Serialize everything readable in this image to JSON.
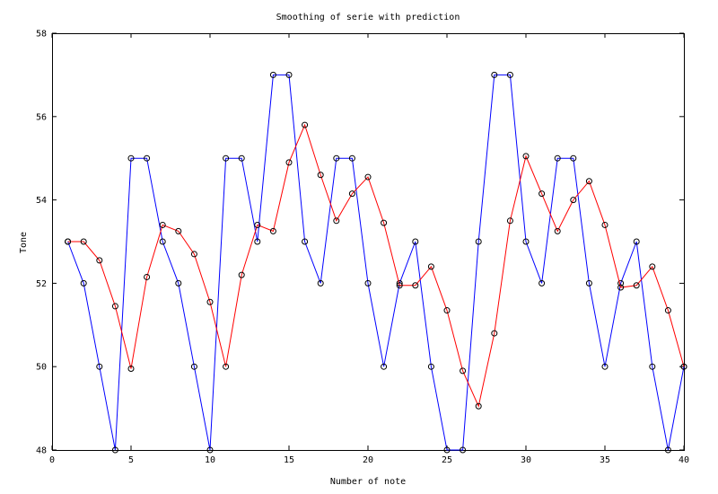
{
  "chart_data": {
    "type": "line",
    "title": "Smoothing of serie with prediction",
    "xlabel": "Number of note",
    "ylabel": "Tone",
    "xlim": [
      0,
      40
    ],
    "ylim": [
      48,
      58
    ],
    "xticks": [
      0,
      5,
      10,
      15,
      20,
      25,
      30,
      35,
      40
    ],
    "yticks": [
      48,
      50,
      52,
      54,
      56,
      58
    ],
    "grid": false,
    "legend": "none",
    "x": [
      1,
      2,
      3,
      4,
      5,
      6,
      7,
      8,
      9,
      10,
      11,
      12,
      13,
      14,
      15,
      16,
      17,
      18,
      19,
      20,
      21,
      22,
      23,
      24,
      25,
      26,
      27,
      28,
      29,
      30,
      31,
      32,
      33,
      34,
      35,
      36,
      37,
      38,
      39,
      40
    ],
    "series": [
      {
        "color": "#0000ff",
        "values": [
          53,
          52,
          50,
          48,
          55,
          55,
          53,
          52,
          50,
          48,
          55,
          55,
          53,
          57,
          57,
          53,
          52,
          55,
          55,
          52,
          50,
          52,
          53,
          50,
          48,
          48,
          53,
          57,
          57,
          53,
          52,
          55,
          55,
          52,
          50,
          52,
          53,
          50,
          48,
          50
        ]
      },
      {
        "color": "#ff0000",
        "values": [
          53,
          53,
          52.55,
          51.45,
          49.95,
          52.15,
          53.4,
          53.25,
          52.7,
          51.55,
          50,
          52.2,
          53.4,
          53.25,
          54.9,
          55.8,
          54.6,
          53.5,
          54.15,
          54.55,
          53.45,
          51.95,
          51.95,
          52.4,
          51.35,
          49.9,
          49.05,
          50.8,
          53.5,
          55.05,
          54.15,
          53.25,
          54,
          54.45,
          53.4,
          51.9,
          51.95,
          52.4,
          51.35,
          50
        ]
      }
    ]
  }
}
